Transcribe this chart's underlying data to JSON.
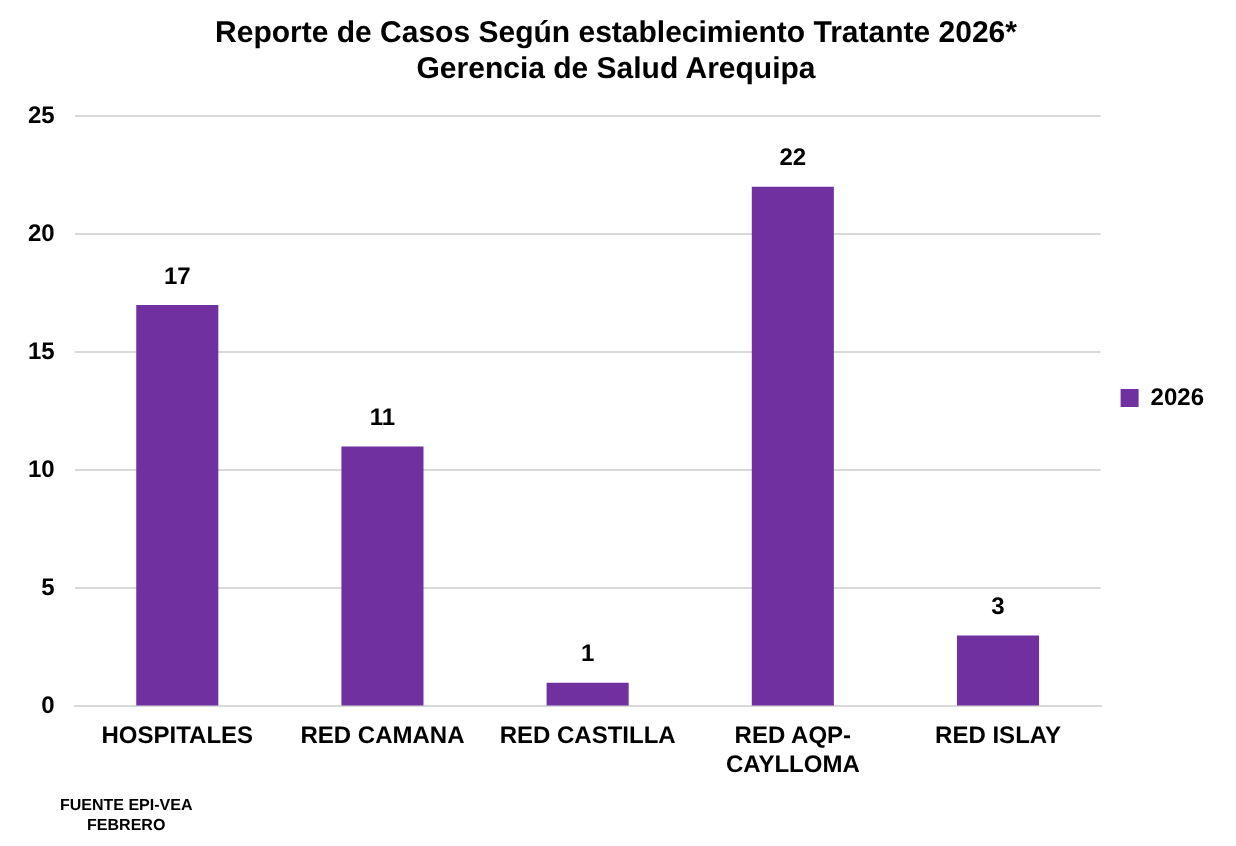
{
  "chart_data": {
    "type": "bar",
    "title": "Reporte de Casos Según establecimiento Tratante 2026*",
    "subtitle": "Gerencia de Salud Arequipa",
    "categories": [
      "HOSPITALES",
      "RED CAMANA",
      "RED CASTILLA",
      "RED AQP-CAYLLOMA",
      "RED ISLAY"
    ],
    "series": [
      {
        "name": "2026",
        "color": "#7030a0",
        "values": [
          17,
          11,
          1,
          22,
          3
        ]
      }
    ],
    "ylim": [
      0,
      25
    ],
    "yticks": [
      0,
      5,
      10,
      15,
      20,
      25
    ],
    "grid": "y",
    "legend": "right",
    "data_labels": true,
    "annotations": [
      "FUENTE EPI-VEA",
      "FEBRERO"
    ]
  }
}
